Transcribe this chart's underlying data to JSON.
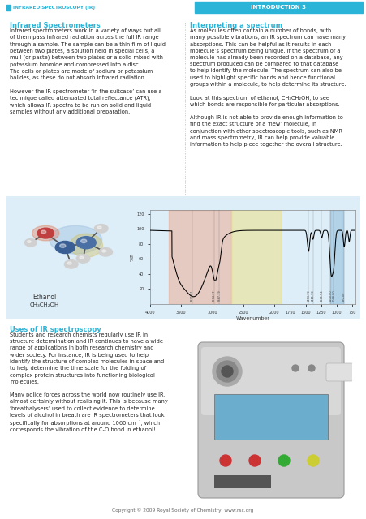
{
  "page_bg": "#ffffff",
  "header_bar_color": "#2ab4d8",
  "header_left_text": "INFRARED SPECTROSCOPY (IR)",
  "header_right_text": "INTRODUCTION 3",
  "header_text_color_left": "#2ab4d8",
  "header_text_color_right": "#ffffff",
  "section1_title": "Infrared Spectrometers",
  "section2_title": "Interpreting a spectrum",
  "section3_title": "Uses of IR spectroscopy",
  "footer_text": "Copyright © 2009 Royal Society of Chemistry  www.rsc.org",
  "chart_bg": "#ddeef8",
  "ethanol_label_line1": "Ethanol",
  "ethanol_label_line2": "CH₃CH₂OH",
  "section_title_color": "#2ab4d8",
  "body_text_color": "#222222",
  "highlight_pink": "#f0a080",
  "highlight_yellow": "#f0e070",
  "highlight_blue": "#88b8d8",
  "ylabel": "%T",
  "xlabel": "Wavenumber",
  "yticks": [
    20,
    40,
    60,
    80,
    100,
    120
  ],
  "xticks": [
    4000,
    3500,
    3000,
    2500,
    2000,
    1750,
    1500,
    1250,
    1000,
    750
  ]
}
